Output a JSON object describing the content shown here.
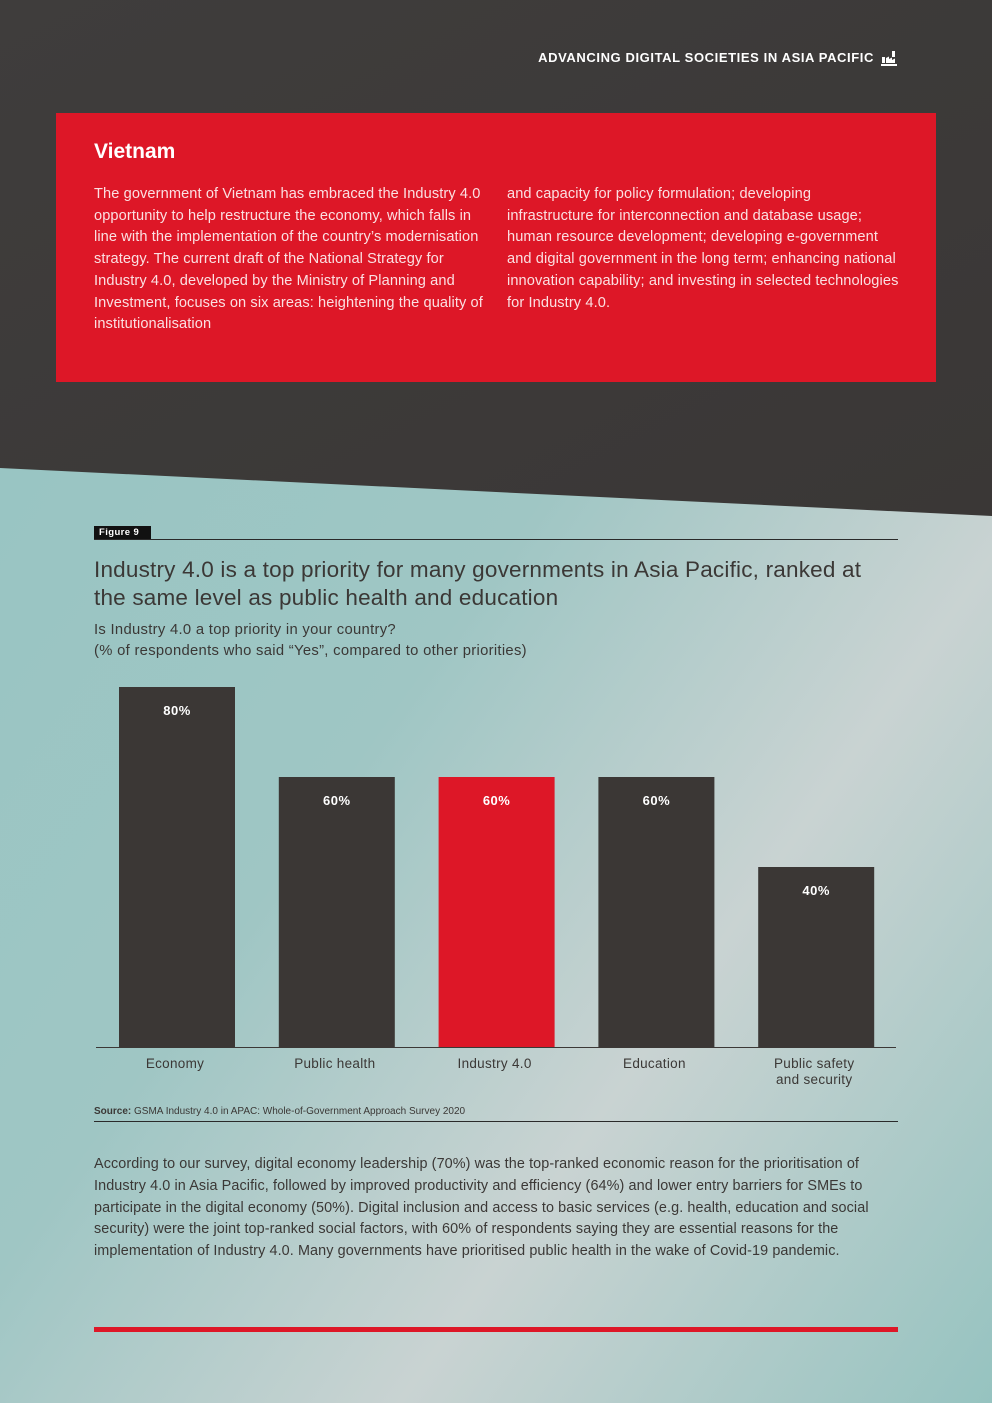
{
  "header": {
    "title": "ADVANCING DIGITAL SOCIETIES IN ASIA PACIFIC",
    "icon": "factory-icon"
  },
  "country_box": {
    "title": "Vietnam",
    "paragraph_left": "The government of Vietnam has embraced the Industry 4.0 opportunity to help restructure the economy, which falls in line with the implementation of the country’s modernisation strategy. The current draft of the National Strategy for Industry 4.0, developed by the Ministry of Planning and Investment, focuses on six areas: heightening the quality of institutionalisation",
    "paragraph_right": "and capacity for policy formulation; developing infrastructure for interconnection and database usage; human resource development; developing e-government and digital government in the long term; enhancing national innovation capability; and investing in selected technologies for Industry 4.0."
  },
  "figure": {
    "tag": "Figure 9",
    "title": "Industry 4.0 is a top priority for many governments in Asia Pacific, ranked at the same level as public health and education",
    "subtitle_line1": "Is Industry 4.0 a top priority in your country?",
    "subtitle_line2": "(% of respondents who said “Yes”, compared to other priorities)",
    "source_label": "Source:",
    "source_text": " GSMA Industry 4.0 in APAC: Whole-of-Government Approach Survey 2020"
  },
  "chart_data": {
    "type": "bar",
    "title": "Industry 4.0 is a top priority for many governments in Asia Pacific, ranked at the same level as public health and education",
    "subtitle": "Is Industry 4.0 a top priority in your country? (% of respondents who said “Yes”, compared to other priorities)",
    "categories": [
      [
        "Economy"
      ],
      [
        "Public health"
      ],
      [
        "Industry 4.0"
      ],
      [
        "Education"
      ],
      [
        "Public safety",
        "and security"
      ]
    ],
    "values": [
      80,
      60,
      60,
      60,
      40
    ],
    "value_labels": [
      "80%",
      "60%",
      "60%",
      "60%",
      "40%"
    ],
    "highlight_index": 2,
    "unit": "%",
    "ylim": [
      0,
      80
    ],
    "xlabel": "",
    "ylabel": "",
    "grid": false,
    "colors": {
      "default": "#3b3735",
      "highlight": "#dd1727",
      "label": "#ffffff",
      "axis": "#3b3836"
    }
  },
  "body_text": "According to our survey, digital economy leadership (70%) was the top-ranked economic reason for the prioritisation of Industry 4.0 in Asia Pacific, followed by improved productivity and efficiency (64%) and lower entry barriers for SMEs to participate in the digital economy (50%). Digital inclusion and access to basic services (e.g. health, education and social security) were the joint top-ranked social factors, with 60% of respondents saying they are essential reasons for the implementation of Industry 4.0. Many governments have prioritised public health in the wake of Covid-19 pandemic.",
  "colors": {
    "dark_band": "#3d3a39",
    "accent_red": "#dd1727",
    "teal_background": "#96c3c0"
  }
}
